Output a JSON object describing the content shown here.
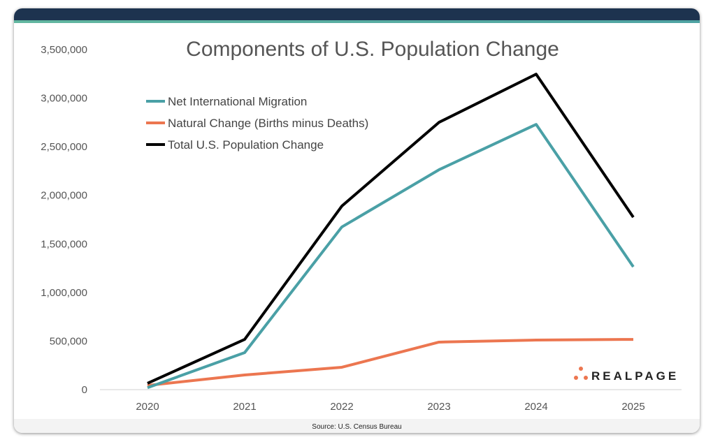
{
  "source": "Source: U.S. Census Bureau",
  "logo": "REALPAGE",
  "colors": {
    "header": "#1d334f",
    "accent": "#5fb3a3"
  },
  "chart_data": {
    "type": "line",
    "title": "Components of U.S. Population Change",
    "xlabel": "",
    "ylabel": "",
    "categories": [
      "2020",
      "2021",
      "2022",
      "2023",
      "2024",
      "2025"
    ],
    "ylim": [
      0,
      3500000
    ],
    "yticks": [
      0,
      500000,
      1000000,
      1500000,
      2000000,
      2500000,
      3000000,
      3500000
    ],
    "ytick_labels": [
      "0",
      "500,000",
      "1,000,000",
      "1,500,000",
      "2,000,000",
      "2,500,000",
      "3,000,000",
      "3,500,000"
    ],
    "grid": false,
    "legend_position": "top-left",
    "series": [
      {
        "name": "Net International Migration",
        "color": "#4aa0a6",
        "values": [
          20000,
          381000,
          1674000,
          2263000,
          2730000,
          1264000
        ]
      },
      {
        "name": "Natural Change (Births minus Deaths)",
        "color": "#ec7650",
        "values": [
          43000,
          151000,
          230000,
          489000,
          510000,
          517000
        ]
      },
      {
        "name": "Total U.S. Population Change",
        "color": "#000000",
        "values": [
          65000,
          517000,
          1889000,
          2751000,
          3247000,
          1774000
        ]
      }
    ]
  }
}
